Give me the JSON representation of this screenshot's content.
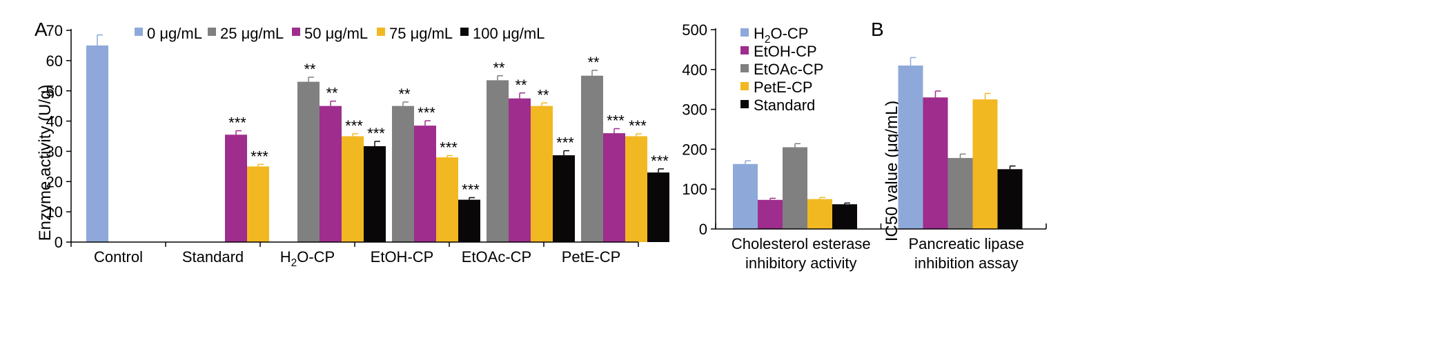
{
  "chart_data": [
    {
      "panel_label": "A",
      "type": "bar",
      "ylabel": "Enzyme activity (U/g)",
      "ylim": [
        0,
        70
      ],
      "yticks": [
        0,
        10,
        20,
        30,
        40,
        50,
        60,
        70
      ],
      "grid": false,
      "legend_position": "top",
      "categories": [
        "Control",
        "Standard",
        "H2O-CP",
        "EtOH-CP",
        "EtOAc-CP",
        "PetE-CP"
      ],
      "series": [
        {
          "name": "0 μg/mL",
          "color": "#8EA9D9",
          "values": [
            65,
            null,
            null,
            null,
            null,
            null
          ],
          "errors": [
            3.5,
            null,
            null,
            null,
            null,
            null
          ],
          "sig": [
            "",
            "",
            "",
            "",
            "",
            ""
          ]
        },
        {
          "name": "25 μg/mL",
          "color": "#808080",
          "values": [
            null,
            null,
            53,
            45,
            53.5,
            55
          ],
          "errors": [
            null,
            null,
            1.5,
            1.3,
            1.5,
            1.8
          ],
          "sig": [
            "",
            "",
            "**",
            "**",
            "**",
            "**"
          ]
        },
        {
          "name": "50 μg/mL",
          "color": "#9E2D8E",
          "values": [
            null,
            35.5,
            45,
            38.5,
            47.5,
            36
          ],
          "errors": [
            null,
            1.3,
            1.6,
            1.6,
            1.8,
            1.5
          ],
          "sig": [
            "",
            "***",
            "**",
            "***",
            "**",
            "***"
          ]
        },
        {
          "name": "75 μg/mL",
          "color": "#F2B822",
          "values": [
            null,
            25,
            35,
            28,
            45,
            35
          ],
          "errors": [
            null,
            0.7,
            0.8,
            0.6,
            1.0,
            0.8
          ],
          "sig": [
            "",
            "***",
            "***",
            "***",
            "**",
            "***"
          ]
        },
        {
          "name": "100 μg/mL",
          "color": "#0A0709",
          "values": [
            null,
            null,
            31.7,
            14,
            28.7,
            23
          ],
          "errors": [
            null,
            null,
            1.6,
            0.7,
            1.5,
            1.2
          ],
          "sig": [
            "",
            "",
            "***",
            "***",
            "***",
            "***"
          ]
        }
      ]
    },
    {
      "panel_label": "B",
      "type": "bar",
      "ylabel": "IC50 value (μg/mL)",
      "ylim": [
        0,
        500
      ],
      "yticks": [
        0,
        100,
        200,
        300,
        400,
        500
      ],
      "grid": false,
      "legend_position": "top-left",
      "categories": [
        [
          "Cholesterol esterase",
          "inhibitory activity"
        ],
        [
          "Pancreatic lipase",
          "inhibition assay"
        ]
      ],
      "series": [
        {
          "name": "H2O-CP",
          "color": "#8EA9D9",
          "values": [
            163,
            410
          ],
          "errors": [
            8,
            20
          ]
        },
        {
          "name": "EtOH-CP",
          "color": "#9E2D8E",
          "values": [
            73,
            330
          ],
          "errors": [
            4,
            16
          ]
        },
        {
          "name": "EtOAc-CP",
          "color": "#808080",
          "values": [
            205,
            178
          ],
          "errors": [
            9,
            10
          ]
        },
        {
          "name": "PetE-CP",
          "color": "#F2B822",
          "values": [
            75,
            325
          ],
          "errors": [
            4,
            15
          ]
        },
        {
          "name": "Standard",
          "color": "#0A0709",
          "values": [
            62,
            150
          ],
          "errors": [
            3,
            8
          ]
        }
      ]
    }
  ]
}
